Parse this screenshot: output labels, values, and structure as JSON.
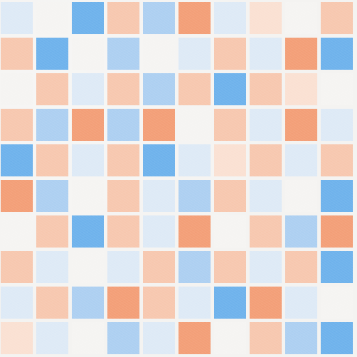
{
  "palette": {
    "W": "#f5f4f2",
    "B": "#70b3ec",
    "b": "#aed0f1",
    "l": "#deeaf6",
    "O": "#f3a079",
    "o": "#f7c8b0",
    "p": "#fae1d3"
  },
  "grid": [
    [
      "l",
      "W",
      "B",
      "o",
      "b",
      "O",
      "l",
      "p",
      "W",
      "o"
    ],
    [
      "o",
      "B",
      "W",
      "b",
      "W",
      "l",
      "o",
      "l",
      "O",
      "B"
    ],
    [
      "W",
      "o",
      "l",
      "o",
      "b",
      "o",
      "B",
      "o",
      "p",
      "W"
    ],
    [
      "o",
      "b",
      "O",
      "b",
      "O",
      "W",
      "o",
      "l",
      "O",
      "l"
    ],
    [
      "B",
      "o",
      "l",
      "o",
      "B",
      "l",
      "p",
      "o",
      "l",
      "o"
    ],
    [
      "O",
      "b",
      "W",
      "o",
      "l",
      "b",
      "o",
      "l",
      "W",
      "B"
    ],
    [
      "W",
      "o",
      "B",
      "o",
      "l",
      "O",
      "W",
      "o",
      "b",
      "O"
    ],
    [
      "o",
      "l",
      "W",
      "l",
      "o",
      "b",
      "o",
      "l",
      "o",
      "B"
    ],
    [
      "l",
      "o",
      "b",
      "O",
      "o",
      "l",
      "B",
      "O",
      "l",
      "W"
    ],
    [
      "p",
      "l",
      "W",
      "b",
      "l",
      "O",
      "W",
      "o",
      "b",
      "B"
    ]
  ]
}
